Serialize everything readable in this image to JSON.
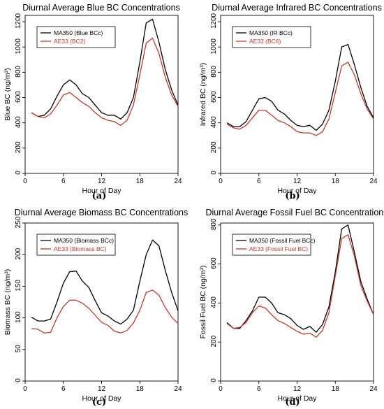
{
  "colors": {
    "ma350": "#000000",
    "ae33": "#c0392b"
  },
  "panel_labels": [
    "(a)",
    "(b)",
    "(c)",
    "(d)"
  ],
  "chart_data": [
    {
      "type": "line",
      "title": "Diurnal Average Blue BC Concentrations",
      "xlabel": "Hour of Day",
      "ylabel": "Blue BC (ng/m³)",
      "xlim": [
        0,
        24
      ],
      "ylim": [
        0,
        1250
      ],
      "xticks": [
        0,
        6,
        12,
        18,
        24
      ],
      "yticks": [
        0,
        200,
        400,
        600,
        800,
        1000,
        1200
      ],
      "legend_position": "top-left",
      "x": [
        1,
        2,
        3,
        4,
        5,
        6,
        7,
        8,
        9,
        10,
        11,
        12,
        13,
        14,
        15,
        16,
        17,
        18,
        19,
        20,
        21,
        22,
        23,
        24
      ],
      "series": [
        {
          "name": "MA350 (Blue BCc)",
          "color": "#000000",
          "values": [
            480,
            450,
            460,
            510,
            610,
            700,
            740,
            700,
            630,
            600,
            540,
            480,
            460,
            460,
            430,
            480,
            600,
            880,
            1190,
            1220,
            1040,
            820,
            660,
            540
          ]
        },
        {
          "name": "AE33   (BC2)",
          "color": "#c0392b",
          "values": [
            480,
            450,
            440,
            470,
            540,
            620,
            640,
            600,
            560,
            530,
            480,
            440,
            420,
            410,
            380,
            420,
            540,
            780,
            1030,
            1070,
            950,
            760,
            620,
            530
          ]
        }
      ]
    },
    {
      "type": "line",
      "title": "Diurnal Average Infrared BC Concentrations",
      "xlabel": "Hour of Day",
      "ylabel": "Infrared BC (ng/m³)",
      "xlim": [
        0,
        24
      ],
      "ylim": [
        0,
        1250
      ],
      "xticks": [
        0,
        6,
        12,
        18,
        24
      ],
      "yticks": [
        0,
        200,
        400,
        600,
        800,
        1000,
        1200
      ],
      "legend_position": "top-left",
      "x": [
        1,
        2,
        3,
        4,
        5,
        6,
        7,
        8,
        9,
        10,
        11,
        12,
        13,
        14,
        15,
        16,
        17,
        18,
        19,
        20,
        21,
        22,
        23,
        24
      ],
      "series": [
        {
          "name": "MA350 (IR BCc)",
          "color": "#000000",
          "values": [
            400,
            370,
            370,
            410,
            500,
            590,
            600,
            570,
            500,
            470,
            420,
            380,
            370,
            380,
            340,
            390,
            500,
            730,
            1000,
            1020,
            860,
            680,
            530,
            440
          ]
        },
        {
          "name": "AE33   (BC6)",
          "color": "#c0392b",
          "values": [
            390,
            360,
            350,
            380,
            440,
            500,
            500,
            460,
            420,
            400,
            370,
            330,
            320,
            320,
            300,
            330,
            430,
            640,
            850,
            880,
            780,
            630,
            510,
            430
          ]
        }
      ]
    },
    {
      "type": "line",
      "title": "Diurnal Average Biomass BC Concentrations",
      "xlabel": "Hour of Day",
      "ylabel": "Biomass BC (ng/m³)",
      "xlim": [
        0,
        24
      ],
      "ylim": [
        0,
        250
      ],
      "xticks": [
        0,
        6,
        12,
        18,
        24
      ],
      "yticks": [
        0,
        50,
        100,
        150,
        200,
        250
      ],
      "legend_position": "top-left",
      "x": [
        1,
        2,
        3,
        4,
        5,
        6,
        7,
        8,
        9,
        10,
        11,
        12,
        13,
        14,
        15,
        16,
        17,
        18,
        19,
        20,
        21,
        22,
        23,
        24
      ],
      "series": [
        {
          "name": "MA350 (Biomass BCc)",
          "color": "#000000",
          "values": [
            101,
            95,
            95,
            98,
            125,
            155,
            173,
            174,
            158,
            148,
            127,
            108,
            103,
            95,
            90,
            98,
            112,
            158,
            200,
            223,
            214,
            175,
            140,
            111
          ]
        },
        {
          "name": "AE33   (Biomass BC)",
          "color": "#c0392b",
          "values": [
            83,
            82,
            76,
            77,
            100,
            118,
            128,
            128,
            123,
            115,
            104,
            93,
            88,
            79,
            76,
            80,
            92,
            112,
            140,
            144,
            136,
            116,
            101,
            91
          ]
        }
      ]
    },
    {
      "type": "line",
      "title": "Diurnal Average Fossil Fuel BC Concentrations",
      "xlabel": "Hour of Day",
      "ylabel": "Fossil Fuel BC (ng/m³)",
      "xlim": [
        0,
        24
      ],
      "ylim": [
        0,
        810
      ],
      "xticks": [
        0,
        6,
        12,
        18,
        24
      ],
      "yticks": [
        0,
        200,
        400,
        600,
        800
      ],
      "legend_position": "top-left",
      "x": [
        1,
        2,
        3,
        4,
        5,
        6,
        7,
        8,
        9,
        10,
        11,
        12,
        13,
        14,
        15,
        16,
        17,
        18,
        19,
        20,
        21,
        22,
        23,
        24
      ],
      "series": [
        {
          "name": "MA350 (Fossil Fuel BCc)",
          "color": "#000000",
          "values": [
            300,
            270,
            270,
            310,
            360,
            430,
            430,
            400,
            350,
            340,
            320,
            285,
            265,
            280,
            250,
            290,
            380,
            560,
            780,
            800,
            660,
            510,
            420,
            340
          ]
        },
        {
          "name": "AE33   (Fossil Fuel BC)",
          "color": "#c0392b",
          "values": [
            295,
            270,
            275,
            300,
            350,
            385,
            375,
            340,
            310,
            295,
            275,
            255,
            240,
            245,
            225,
            260,
            350,
            540,
            730,
            750,
            640,
            490,
            410,
            340
          ]
        }
      ]
    }
  ]
}
